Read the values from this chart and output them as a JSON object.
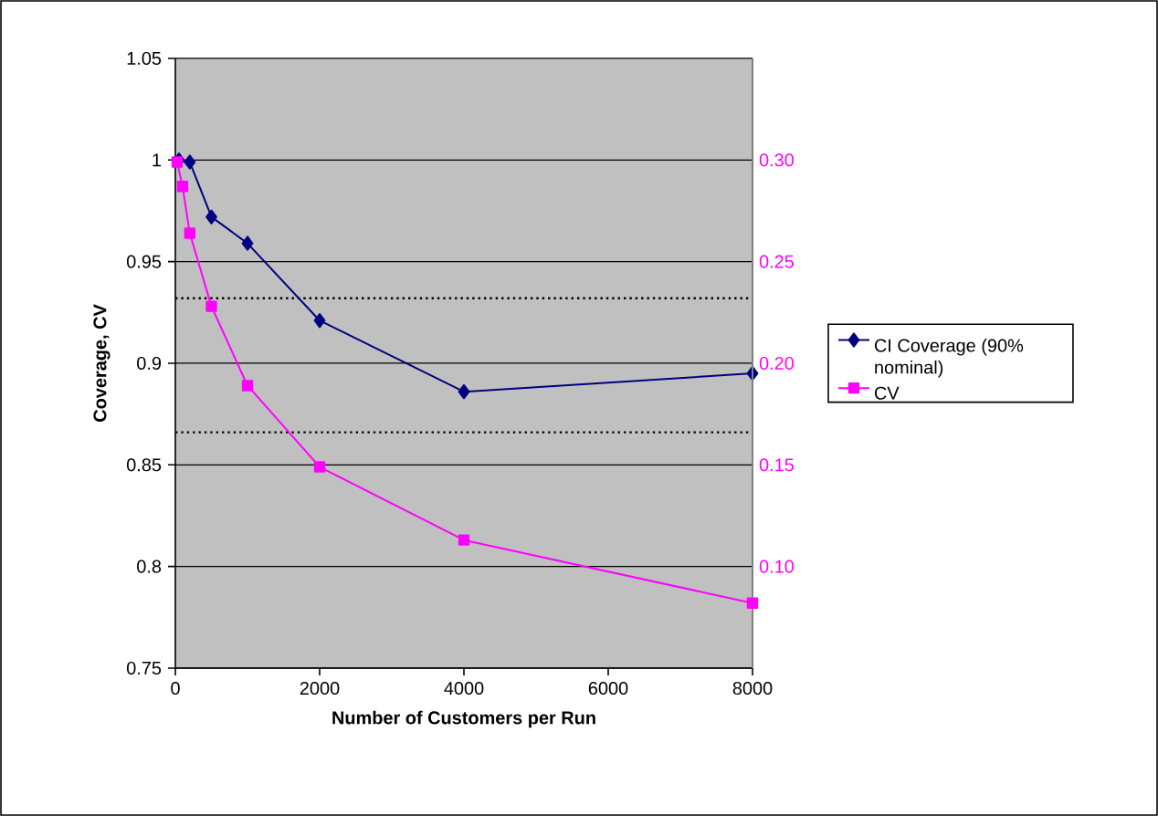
{
  "chart_data": {
    "type": "line",
    "xlabel": "Number of Customers per Run",
    "ylabel": "Coverage, CV",
    "xlim": [
      0,
      8000
    ],
    "xticks": [
      0,
      2000,
      4000,
      6000,
      8000
    ],
    "ylim": [
      0.75,
      1.05
    ],
    "yticks": [
      0.75,
      0.8,
      0.85,
      0.9,
      0.95,
      1,
      1.05
    ],
    "y2lim": [
      0.05,
      0.35
    ],
    "y2ticks": [
      {
        "value": 0.1,
        "label": "0.10"
      },
      {
        "value": 0.15,
        "label": "0.15"
      },
      {
        "value": 0.2,
        "label": "0.20"
      },
      {
        "value": 0.25,
        "label": "0.25"
      },
      {
        "value": 0.3,
        "label": "0.30"
      }
    ],
    "grid": "y",
    "legend": "right",
    "line_style": "solid",
    "ref_lines": [
      {
        "axis": "y",
        "value": 0.932,
        "line_style": "dotted",
        "color": "#000000"
      },
      {
        "axis": "y",
        "value": 0.866,
        "line_style": "dotted",
        "color": "#000000"
      }
    ],
    "series": [
      {
        "name": "CI Coverage (90% nominal)",
        "color": "#000080",
        "marker": "diamond",
        "x": [
          50,
          200,
          500,
          1000,
          2000,
          4000,
          8000
        ],
        "values": [
          1.0,
          0.999,
          0.972,
          0.959,
          0.921,
          0.886,
          0.895
        ]
      },
      {
        "name": "CV",
        "color": "#ff00ff",
        "marker": "square",
        "axis": "y2",
        "x": [
          25,
          100,
          200,
          500,
          1000,
          2000,
          4000,
          8000
        ],
        "values": [
          0.299,
          0.287,
          0.264,
          0.228,
          0.189,
          0.149,
          0.113,
          0.082
        ]
      }
    ]
  }
}
